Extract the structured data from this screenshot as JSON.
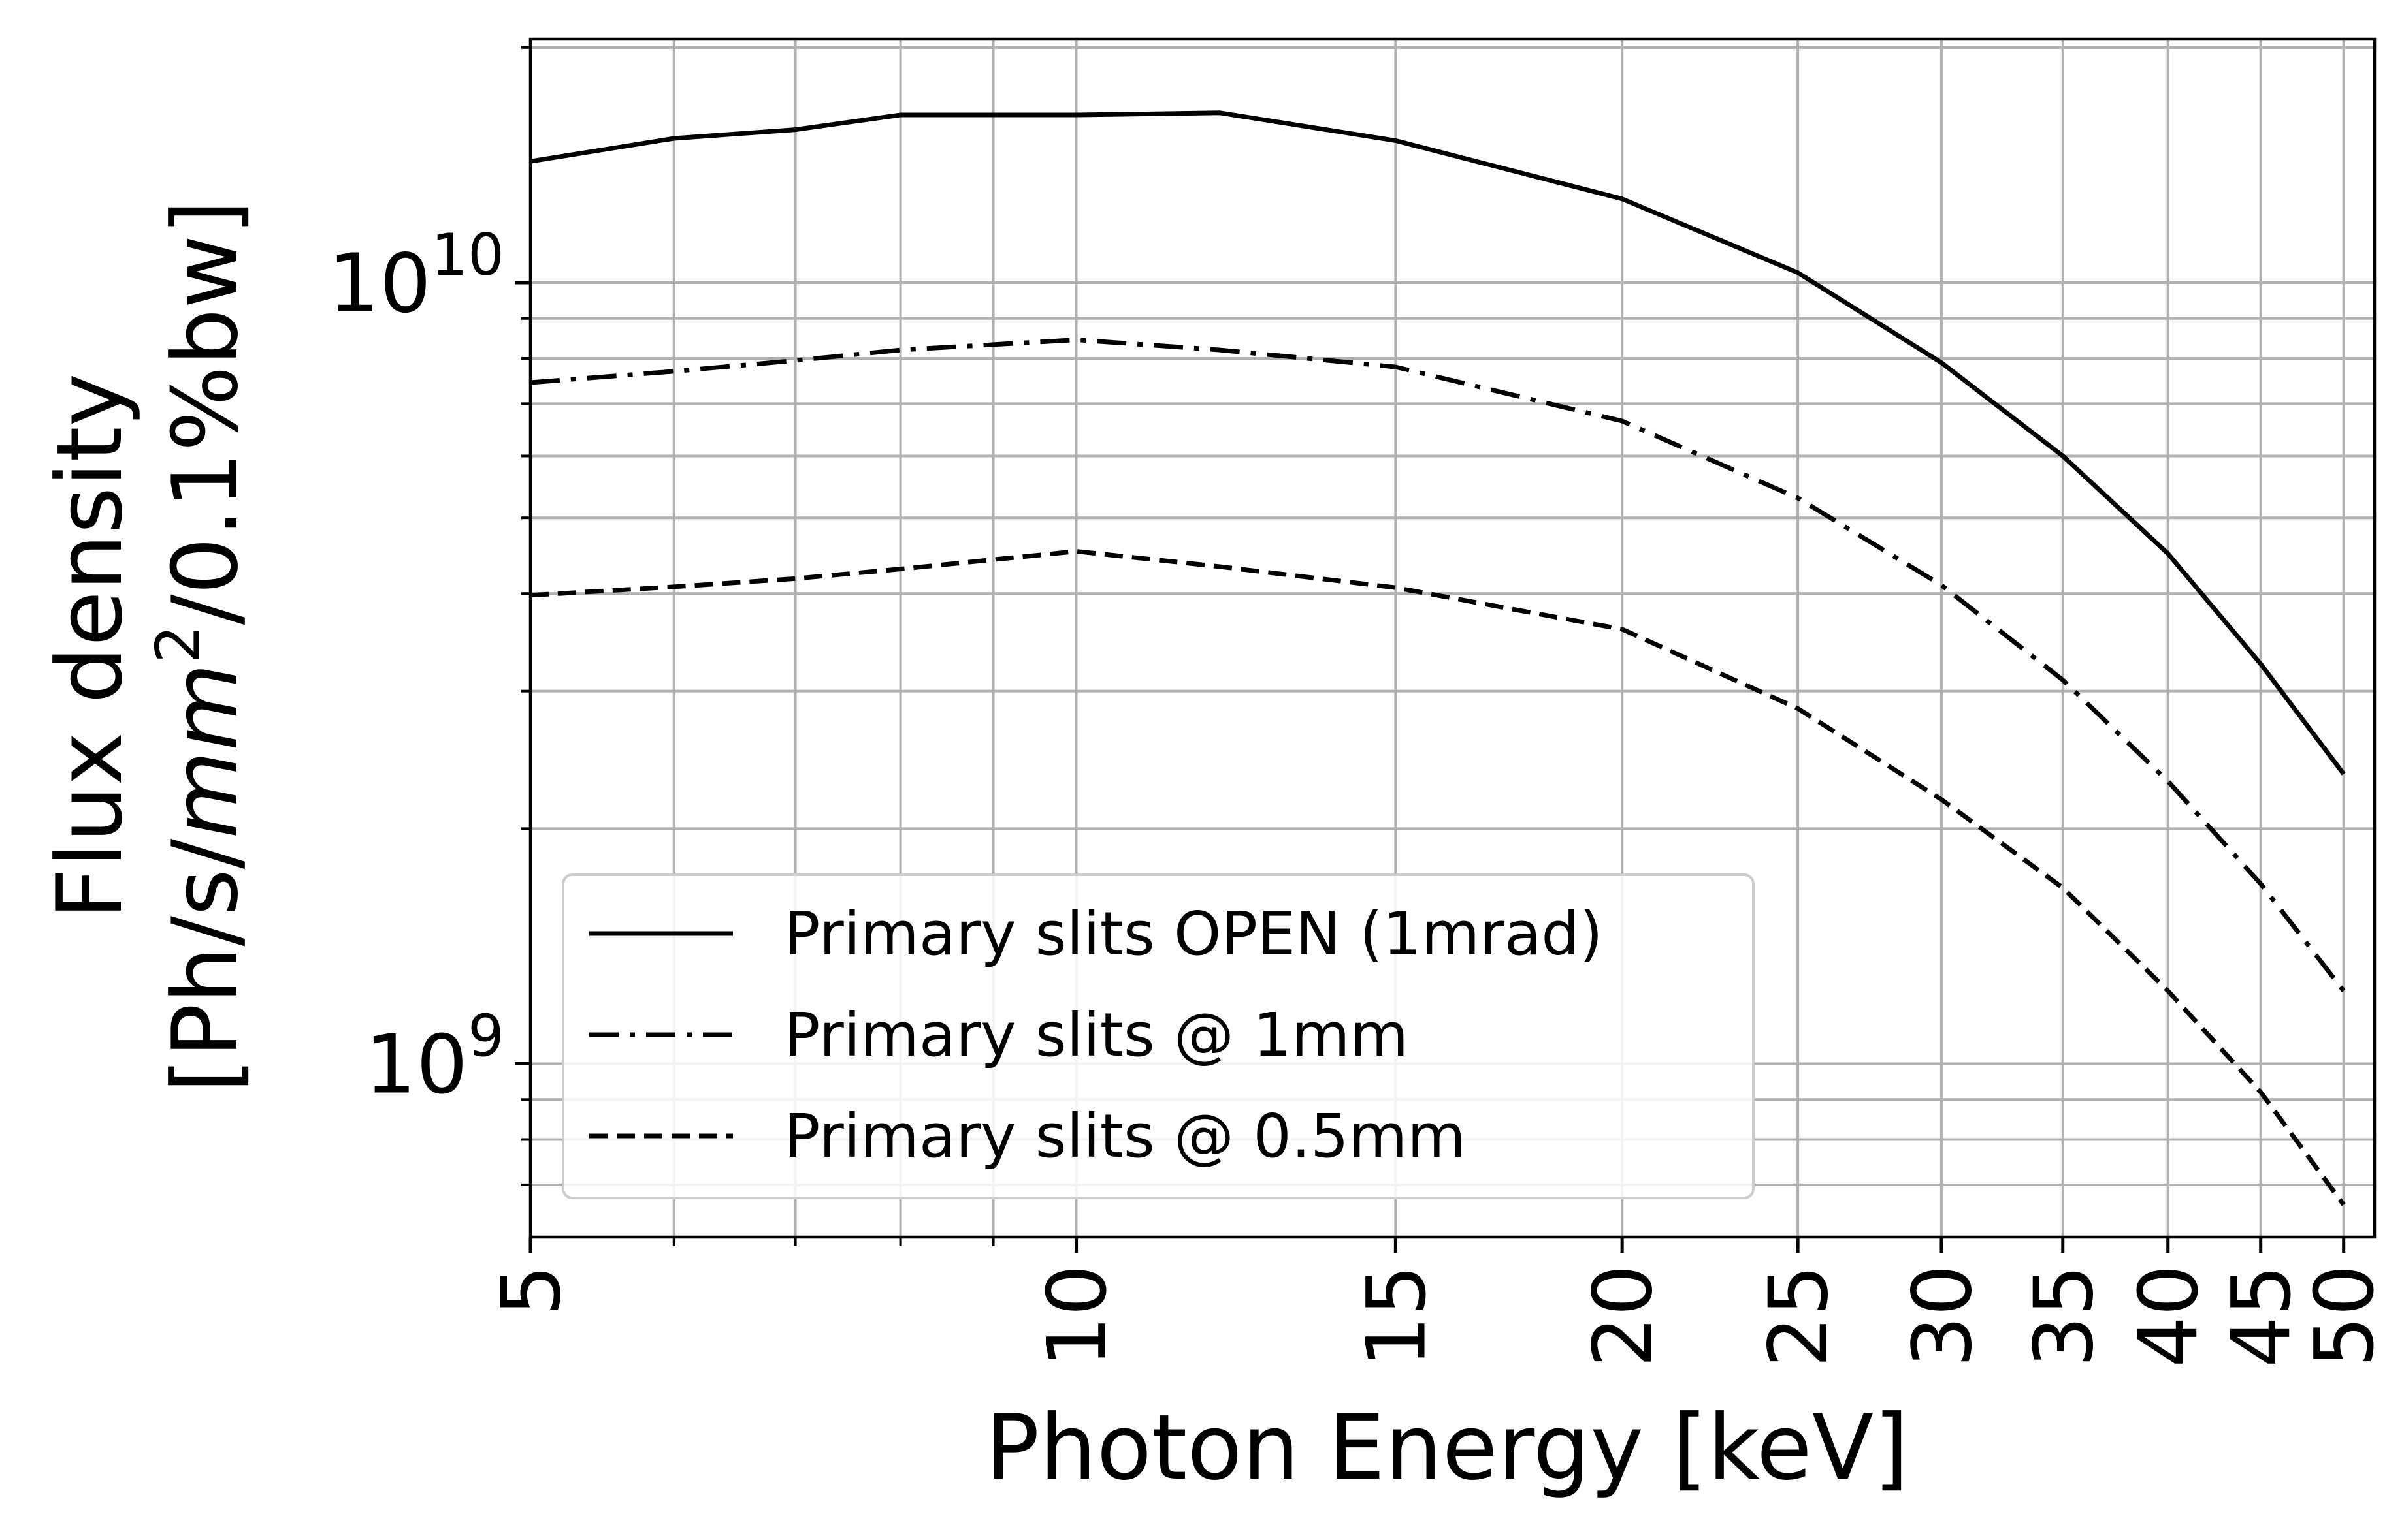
{
  "chart_data": {
    "type": "line",
    "title": "",
    "xlabel": "Photon Energy [keV]",
    "ylabel_line1": "Flux density",
    "ylabel_line2_prefix": "[Ph/s/",
    "ylabel_line2_unit": "mm",
    "ylabel_line2_exp": "2",
    "ylabel_line2_suffix": "/0.1%bw]",
    "x_scale": "log",
    "y_scale": "log",
    "xlim": [
      5,
      52
    ],
    "ylim": [
      600000000.0,
      20500000000.0
    ],
    "grid": true,
    "legend_position": "lower-left",
    "x_ticks": [
      {
        "value": 5,
        "label": "5"
      },
      {
        "value": 10,
        "label": "10"
      },
      {
        "value": 15,
        "label": "15"
      },
      {
        "value": 20,
        "label": "20"
      },
      {
        "value": 25,
        "label": "25"
      },
      {
        "value": 30,
        "label": "30"
      },
      {
        "value": 35,
        "label": "35"
      },
      {
        "value": 40,
        "label": "40"
      },
      {
        "value": 45,
        "label": "45"
      },
      {
        "value": 50,
        "label": "50"
      }
    ],
    "x_minor_ticks": [
      6,
      7,
      8,
      9
    ],
    "y_major_ticks": [
      {
        "value": 1000000000.0,
        "base": "10",
        "exp": "9"
      },
      {
        "value": 10000000000.0,
        "base": "10",
        "exp": "10"
      }
    ],
    "y_minor_ticks": [
      700000000.0,
      800000000.0,
      900000000.0,
      2000000000.0,
      3000000000.0,
      4000000000.0,
      5000000000.0,
      6000000000.0,
      7000000000.0,
      8000000000.0,
      9000000000.0,
      20000000000.0
    ],
    "series": [
      {
        "name": "Primary slits OPEN (1mrad)",
        "dash": "solid",
        "x": [
          5,
          6,
          7,
          8,
          10,
          12,
          15,
          20,
          25,
          30,
          35,
          40,
          45,
          50
        ],
        "y": [
          14300000000.0,
          15300000000.0,
          15700000000.0,
          16400000000.0,
          16400000000.0,
          16500000000.0,
          15200000000.0,
          12800000000.0,
          10300000000.0,
          7900000000.0,
          6000000000.0,
          4500000000.0,
          3250000000.0,
          2350000000.0
        ]
      },
      {
        "name": "Primary slits @ 1mm",
        "dash": "dashdot",
        "x": [
          5,
          6,
          7,
          8,
          10,
          12,
          15,
          20,
          25,
          30,
          35,
          40,
          45,
          50
        ],
        "y": [
          7450000000.0,
          7700000000.0,
          7950000000.0,
          8200000000.0,
          8450000000.0,
          8200000000.0,
          7800000000.0,
          6650000000.0,
          5300000000.0,
          4100000000.0,
          3100000000.0,
          2300000000.0,
          1700000000.0,
          1240000000.0
        ]
      },
      {
        "name": "Primary slits @ 0.5mm",
        "dash": "dashed",
        "x": [
          5,
          6,
          7,
          8,
          10,
          12,
          15,
          20,
          25,
          30,
          35,
          40,
          45,
          50
        ],
        "y": [
          3980000000.0,
          4080000000.0,
          4180000000.0,
          4300000000.0,
          4530000000.0,
          4330000000.0,
          4070000000.0,
          3600000000.0,
          2850000000.0,
          2180000000.0,
          1680000000.0,
          1240000000.0,
          920000000.0,
          660000000.0
        ]
      }
    ]
  }
}
